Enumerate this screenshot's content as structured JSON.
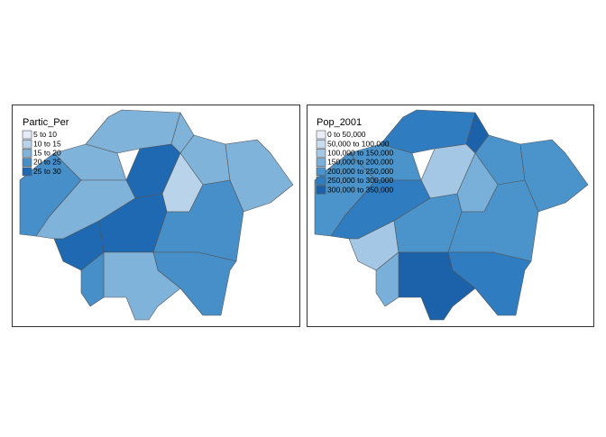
{
  "maps": [
    {
      "legend_title": "Partic_Per",
      "legend": [
        {
          "label": "5 to 10",
          "color": "#e3ecf7"
        },
        {
          "label": "10 to 15",
          "color": "#b9d3ea"
        },
        {
          "label": "15 to 20",
          "color": "#80b3da"
        },
        {
          "label": "20 to 25",
          "color": "#468fc9"
        },
        {
          "label": "25 to 30",
          "color": "#1f68b2"
        }
      ]
    },
    {
      "legend_title": "Pop_2001",
      "legend": [
        {
          "label": "0 to 50,000",
          "color": "#e8eff8"
        },
        {
          "label": "50,000 to 100,000",
          "color": "#c8dcef"
        },
        {
          "label": "100,000 to 150,000",
          "color": "#a3c7e4"
        },
        {
          "label": "150,000 to 200,000",
          "color": "#78b0d9"
        },
        {
          "label": "200,000 to 250,000",
          "color": "#4a94cb"
        },
        {
          "label": "250,000 to 300,000",
          "color": "#2f7dc0"
        },
        {
          "label": "300,000 to 350,000",
          "color": "#1b62ab"
        }
      ]
    }
  ]
}
